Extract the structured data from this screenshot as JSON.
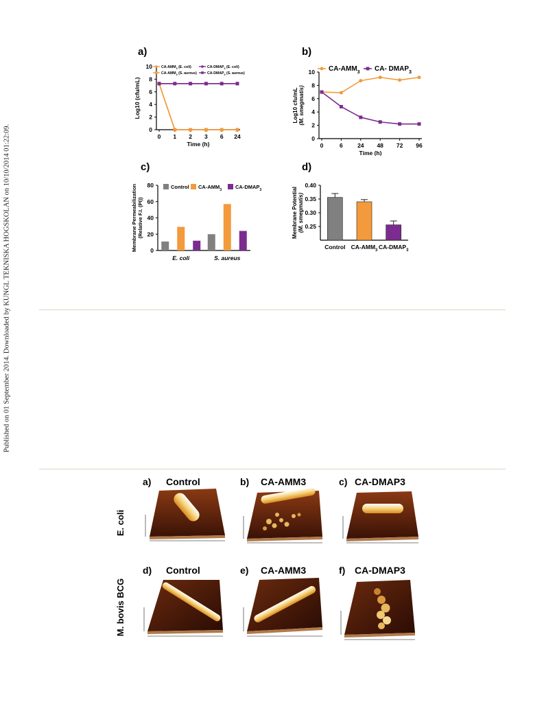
{
  "side_note": "Published on 01 September 2014. Downloaded by KUNGL TEKNISKA HOGSKOLAN on 10/10/2014 01:22:09.",
  "panels": {
    "a": "a)",
    "b": "b)",
    "c": "c)",
    "d": "d)"
  },
  "chart_data": [
    {
      "id": "a",
      "type": "line",
      "xlabel": "Time (h)",
      "ylabel": "Log10 (cfu/mL)",
      "categories": [
        "0",
        "1",
        "2",
        "3",
        "6",
        "24"
      ],
      "ylim": [
        0,
        10
      ],
      "yticks": [
        "0",
        "2",
        "4",
        "6",
        "8",
        "10"
      ],
      "series": [
        {
          "name": "CA-AMM3 (E. coli)",
          "color": "#f39a3c",
          "marker": "circle",
          "values": [
            7.3,
            0,
            0,
            0,
            0,
            0
          ]
        },
        {
          "name": "CA-AMM3 (S. aureus)",
          "color": "#f39a3c",
          "marker": "square",
          "values": [
            7.3,
            0,
            0,
            0,
            0,
            0
          ]
        },
        {
          "name": "CA-DMAP3 (E. coli)",
          "color": "#7b2c8e",
          "marker": "circle",
          "values": [
            7.3,
            7.3,
            7.3,
            7.3,
            7.3,
            7.3
          ]
        },
        {
          "name": "CA-DMAP3 (S. aureus)",
          "color": "#7b2c8e",
          "marker": "square",
          "values": [
            7.3,
            7.3,
            7.3,
            7.3,
            7.3,
            7.3
          ]
        }
      ]
    },
    {
      "id": "b",
      "type": "line",
      "xlabel": "Time (h)",
      "ylabel_line1": "Log10 cfu/mL",
      "ylabel_line2": "(M. smegmatis)",
      "categories": [
        "0",
        "6",
        "24",
        "48",
        "72",
        "96"
      ],
      "ylim": [
        0,
        10
      ],
      "yticks": [
        "0",
        "2",
        "4",
        "6",
        "8",
        "10"
      ],
      "series": [
        {
          "name": "CA-AMM3",
          "color": "#f39a3c",
          "values": [
            7.0,
            6.9,
            8.7,
            9.2,
            8.8,
            9.2
          ]
        },
        {
          "name": "CA- DMAP3",
          "color": "#7b2c8e",
          "values": [
            7.0,
            4.8,
            3.2,
            2.5,
            2.2,
            2.2
          ]
        }
      ]
    },
    {
      "id": "c",
      "type": "bar",
      "ylabel_line1": "Membrane Permeabilization",
      "ylabel_line2": "(Relative F.I. (PI))",
      "categories": [
        "E. coli",
        "S. aureus"
      ],
      "ylim": [
        0,
        80
      ],
      "yticks": [
        "0",
        "20",
        "40",
        "60",
        "80"
      ],
      "series": [
        {
          "name": "Control",
          "color": "#808080",
          "values": [
            11,
            20
          ]
        },
        {
          "name": "CA-AMM3",
          "color": "#f39a3c",
          "values": [
            29,
            57
          ]
        },
        {
          "name": "CA-DMAP3",
          "color": "#7b2c8e",
          "values": [
            12,
            24
          ]
        }
      ]
    },
    {
      "id": "d",
      "type": "bar",
      "ylabel_line1": "Membrane Potential",
      "ylabel_line2": "(M. smegmatis)",
      "categories": [
        "Control",
        "CA-AMM3",
        "CA-DMAP3"
      ],
      "ylim": [
        0.2,
        0.4
      ],
      "yticks": [
        "0.25",
        "0.30",
        "0.35",
        "0.40"
      ],
      "values": [
        0.356,
        0.34,
        0.256
      ],
      "errors": [
        0.014,
        0.008,
        0.014
      ],
      "colors": [
        "#808080",
        "#f39a3c",
        "#7b2c8e"
      ]
    }
  ],
  "afm": {
    "row_labels": [
      "E. coli",
      "M. bovis BCG"
    ],
    "panels": [
      {
        "letter": "a)",
        "title": "Control"
      },
      {
        "letter": "b)",
        "title": "CA-AMM3"
      },
      {
        "letter": "c)",
        "title": "CA-DMAP3"
      },
      {
        "letter": "d)",
        "title": "Control"
      },
      {
        "letter": "e)",
        "title": "CA-AMM3"
      },
      {
        "letter": "f)",
        "title": "CA-DMAP3"
      }
    ]
  }
}
